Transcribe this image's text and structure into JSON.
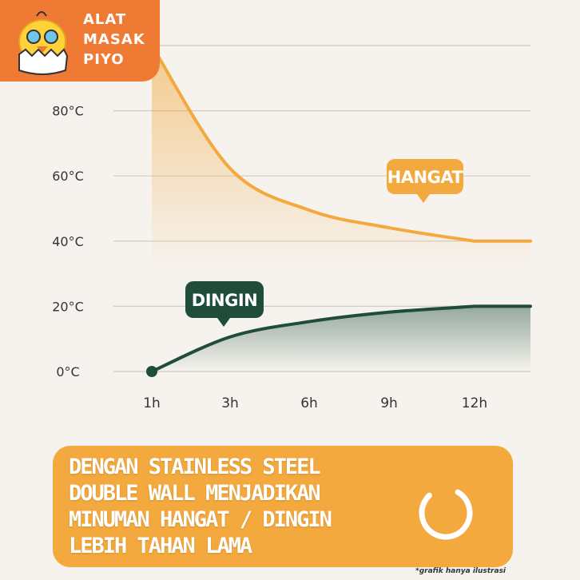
{
  "logo": {
    "text": "ALAT\nMASAK\nPIYO"
  },
  "chart_data": {
    "type": "line",
    "y_ticks": [
      "0°C",
      "20°C",
      "40°C",
      "60°C",
      "80°C"
    ],
    "x_ticks": [
      "1h",
      "3h",
      "6h",
      "9h",
      "12h"
    ],
    "ylim": [
      0,
      100
    ],
    "grid": true,
    "series": [
      {
        "name": "HANGAT",
        "color": "#f3a93d",
        "x": [
          1,
          2,
          3,
          4,
          5
        ],
        "values": [
          100,
          62.3,
          49.5,
          44.1,
          40
        ]
      },
      {
        "name": "DINGIN",
        "color": "#1f4d3a",
        "x": [
          1,
          2,
          3,
          4,
          5
        ],
        "values": [
          0,
          10.6,
          15.3,
          18.2,
          20
        ]
      }
    ]
  },
  "banner": {
    "lines": [
      "DENGAN STAINLESS STEEL",
      "DOUBLE WALL MENJADIKAN",
      "MINUMAN HANGAT / DINGIN",
      "LEBIH TAHAN LAMA"
    ]
  },
  "footnote": "*grafik hanya ilustrasi",
  "colors": {
    "orange": "#f3a93d",
    "dark_green": "#1f4d3a",
    "logo_bg": "#ef7a33",
    "background": "#f6f3ee"
  }
}
